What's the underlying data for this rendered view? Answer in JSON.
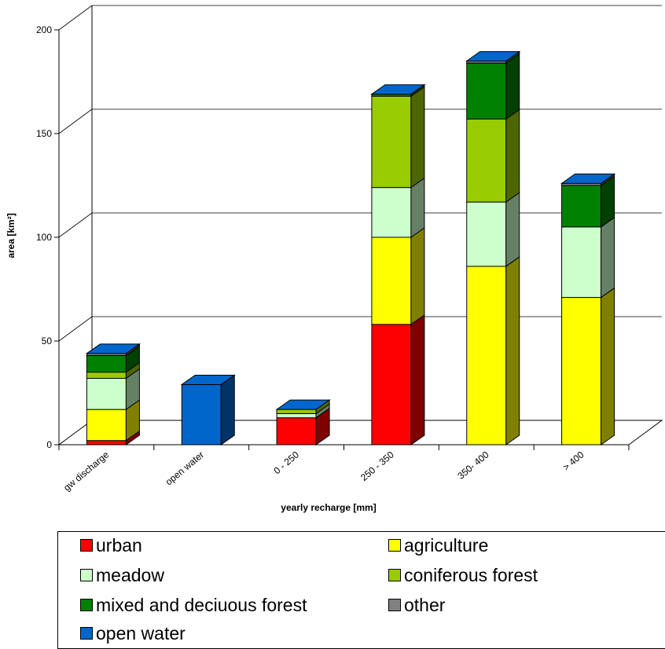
{
  "chart_data": {
    "type": "bar",
    "stacked": true,
    "three_d": true,
    "xlabel": "yearly recharge [mm]",
    "ylabel": "area [km²]",
    "ylim": [
      0,
      200
    ],
    "yticks": [
      0,
      50,
      100,
      150,
      200
    ],
    "grid": true,
    "legend_position": "bottom",
    "categories": [
      "gw discharge",
      "open water",
      "0 - 250",
      "250 - 350",
      "350- 400",
      "> 400"
    ],
    "series": [
      {
        "name": "urban",
        "color": "#ff0000",
        "values": [
          2,
          0,
          13,
          58,
          0,
          0
        ]
      },
      {
        "name": "agriculture",
        "color": "#ffff00",
        "values": [
          15,
          0,
          0,
          42,
          86,
          71
        ]
      },
      {
        "name": "meadow",
        "color": "#ccffcc",
        "values": [
          15,
          0,
          2,
          24,
          31,
          34
        ]
      },
      {
        "name": "coniferous forest",
        "color": "#99cc00",
        "values": [
          3,
          0,
          2,
          44,
          40,
          0
        ]
      },
      {
        "name": "mixed and deciuous forest",
        "color": "#008000",
        "values": [
          8,
          0,
          0,
          1,
          27,
          20
        ]
      },
      {
        "name": "other",
        "color": "#808080",
        "values": [
          1,
          0,
          0,
          0,
          1,
          1
        ]
      },
      {
        "name": "open water",
        "color": "#0066cc",
        "values": [
          0,
          29,
          0,
          0,
          0,
          0
        ]
      }
    ]
  },
  "legend": {
    "items": [
      {
        "label": "urban",
        "color": "#ff0000"
      },
      {
        "label": "agriculture",
        "color": "#ffff00"
      },
      {
        "label": "meadow",
        "color": "#ccffcc"
      },
      {
        "label": "coniferous forest",
        "color": "#99cc00"
      },
      {
        "label": "mixed and deciuous forest",
        "color": "#008000"
      },
      {
        "label": "other",
        "color": "#808080"
      },
      {
        "label": "open water",
        "color": "#0066cc"
      }
    ]
  }
}
